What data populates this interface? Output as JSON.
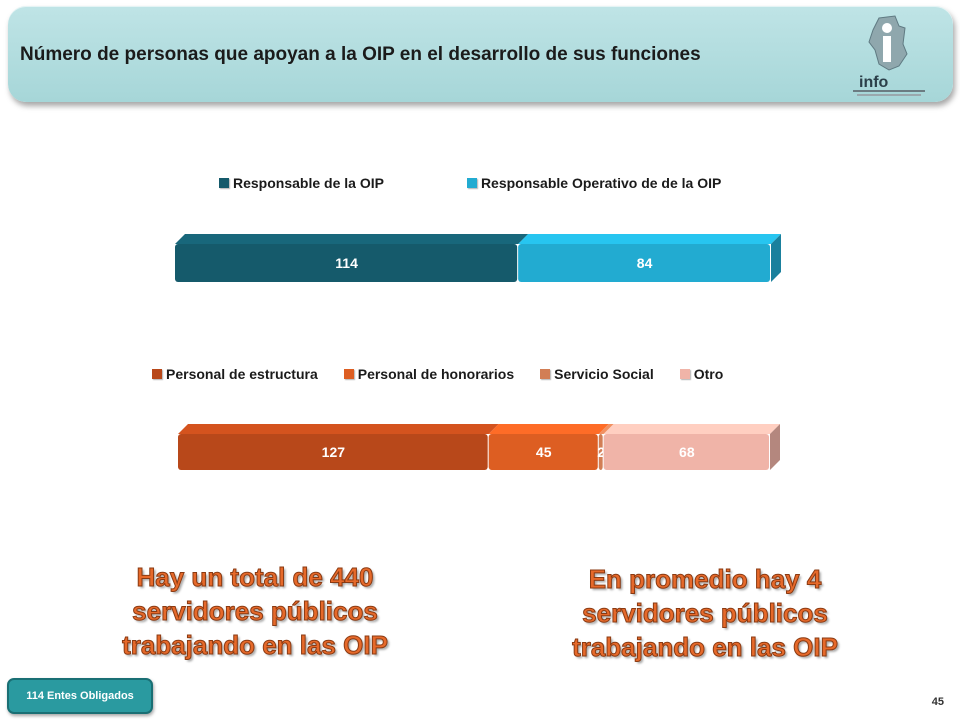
{
  "header": {
    "title": "Número de personas que apoyan a la OIP en el desarrollo de sus funciones",
    "logo_text": "info",
    "logo_icon": "infodf-logo-icon"
  },
  "chart_data": [
    {
      "type": "bar",
      "orientation": "horizontal-stacked",
      "legend_position": "top",
      "categories": [
        ""
      ],
      "series": [
        {
          "name": "Responsable de la OIP",
          "values": [
            114
          ],
          "color": "#155a6b"
        },
        {
          "name": "Responsable Operativo de de la OIP",
          "values": [
            84
          ],
          "color": "#22abd1"
        }
      ]
    },
    {
      "type": "bar",
      "orientation": "horizontal-stacked",
      "legend_position": "top",
      "categories": [
        ""
      ],
      "series": [
        {
          "name": "Personal de estructura",
          "values": [
            127
          ],
          "color": "#b8481a"
        },
        {
          "name": "Personal de honorarios",
          "values": [
            45
          ],
          "color": "#dd5e22"
        },
        {
          "name": "Servicio Social",
          "values": [
            2
          ],
          "color": "#d27e55"
        },
        {
          "name": "Otro",
          "values": [
            68
          ],
          "color": "#f0b4a8"
        }
      ]
    }
  ],
  "callouts": {
    "left": [
      "Hay un total de 440",
      "servidores públicos",
      "trabajando en las OIP"
    ],
    "right": [
      "En promedio hay 4",
      "servidores públicos",
      "trabajando en las OIP"
    ]
  },
  "footer": {
    "badge": "114 Entes Obligados",
    "page_number": "45"
  }
}
